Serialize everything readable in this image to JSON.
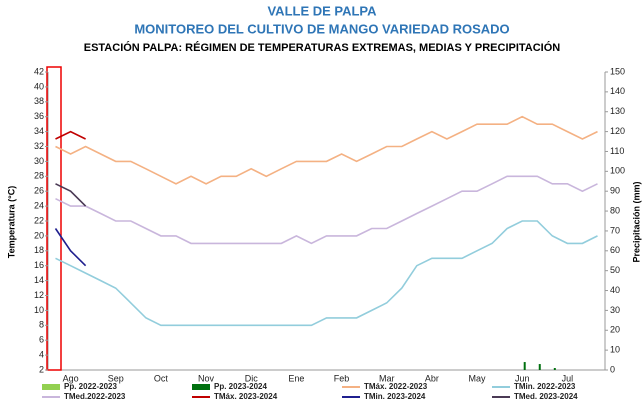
{
  "chart_data": {
    "type": "line",
    "title": "VALLE DE PALPA",
    "subtitle": "MONITOREO DEL CULTIVO DE MANGO VARIEDAD ROSADO",
    "chart_title": "ESTACIÓN PALPA: RÉGIMEN DE TEMPERATURAS EXTREMAS, MEDIAS Y PRECIPITACIÓN",
    "y_label": "Temperatura (°C)",
    "y2_label": "Precipitación (mm)",
    "categories": [
      null,
      "Ago",
      null,
      null,
      "Sep",
      null,
      null,
      "Oct",
      null,
      null,
      "Nov",
      null,
      null,
      "Dic",
      null,
      null,
      "Ene",
      null,
      null,
      "Feb",
      null,
      null,
      "Mar",
      null,
      null,
      "Abr",
      null,
      null,
      "May",
      null,
      null,
      "Jun",
      null,
      null,
      "Jul",
      null,
      null
    ],
    "ylim": [
      2,
      42
    ],
    "yticks": [
      2,
      4,
      6,
      8,
      10,
      12,
      14,
      16,
      18,
      20,
      22,
      24,
      26,
      28,
      30,
      32,
      34,
      36,
      38,
      40,
      42
    ],
    "y2lim": [
      0,
      150
    ],
    "y2ticks": [
      0,
      10,
      20,
      30,
      40,
      50,
      60,
      70,
      80,
      90,
      100,
      110,
      120,
      130,
      140,
      150
    ],
    "series": [
      {
        "name": "Pp. 2022-2023",
        "type": "bar",
        "axis": "y2",
        "color": "#92d050",
        "values": [
          0,
          0,
          0,
          0,
          0,
          0,
          0,
          0,
          0,
          0,
          0,
          0,
          0,
          0,
          0,
          0,
          0,
          0,
          0,
          0,
          0,
          0,
          0,
          0,
          0,
          0,
          0,
          0,
          0,
          0,
          0,
          0,
          0,
          0,
          0,
          0,
          0
        ]
      },
      {
        "name": "Pp. 2023-2024",
        "type": "bar",
        "axis": "y2",
        "color": "#00700f",
        "values": [
          0,
          0,
          0,
          0,
          0,
          0,
          0,
          0,
          0,
          0,
          0,
          0,
          0,
          0,
          0,
          0,
          0,
          0,
          0,
          0,
          0,
          0,
          0,
          0,
          0,
          0,
          0,
          0,
          0,
          0,
          0,
          4,
          3,
          1,
          0,
          0,
          0
        ]
      },
      {
        "name": "TMáx. 2022-2023",
        "color": "#f4b183",
        "values": [
          32,
          31,
          32,
          31,
          30,
          30,
          29,
          28,
          27,
          28,
          27,
          28,
          28,
          29,
          28,
          29,
          30,
          30,
          30,
          31,
          30,
          31,
          32,
          32,
          33,
          34,
          33,
          34,
          35,
          35,
          35,
          36,
          35,
          35,
          34,
          33,
          34
        ]
      },
      {
        "name": "TMin. 2022-2023",
        "color": "#92cddc",
        "values": [
          17,
          16,
          15,
          14,
          13,
          11,
          9,
          8,
          8,
          8,
          8,
          8,
          8,
          8,
          8,
          8,
          8,
          8,
          9,
          9,
          9,
          10,
          11,
          13,
          16,
          17,
          17,
          17,
          18,
          19,
          21,
          22,
          22,
          20,
          19,
          19,
          20
        ]
      },
      {
        "name": "TMed.2022-2023",
        "color": "#c9b6dc",
        "values": [
          25,
          24,
          24,
          23,
          22,
          22,
          21,
          20,
          20,
          19,
          19,
          19,
          19,
          19,
          19,
          19,
          20,
          19,
          20,
          20,
          20,
          21,
          21,
          22,
          23,
          24,
          25,
          26,
          26,
          27,
          28,
          28,
          28,
          27,
          27,
          26,
          27
        ]
      },
      {
        "name": "TMáx. 2023-2024",
        "color": "#c00000",
        "values": [
          33,
          34,
          33,
          null,
          null,
          null,
          null,
          null,
          null,
          null,
          null,
          null,
          null,
          null,
          null,
          null,
          null,
          null,
          null,
          null,
          null,
          null,
          null,
          null,
          null,
          null,
          null,
          null,
          null,
          null,
          null,
          null,
          null,
          null,
          null,
          null,
          null
        ]
      },
      {
        "name": "TMin. 2023-2024",
        "color": "#1f1f8f",
        "values": [
          21,
          18,
          16,
          null,
          null,
          null,
          null,
          null,
          null,
          null,
          null,
          null,
          null,
          null,
          null,
          null,
          null,
          null,
          null,
          null,
          null,
          null,
          null,
          null,
          null,
          null,
          null,
          null,
          null,
          null,
          null,
          null,
          null,
          null,
          null,
          null,
          null
        ]
      },
      {
        "name": "TMed. 2023-2024",
        "color": "#4b3a55",
        "values": [
          27,
          26,
          24,
          null,
          null,
          null,
          null,
          null,
          null,
          null,
          null,
          null,
          null,
          null,
          null,
          null,
          null,
          null,
          null,
          null,
          null,
          null,
          null,
          null,
          null,
          null,
          null,
          null,
          null,
          null,
          null,
          null,
          null,
          null,
          null,
          null,
          null
        ]
      }
    ]
  }
}
